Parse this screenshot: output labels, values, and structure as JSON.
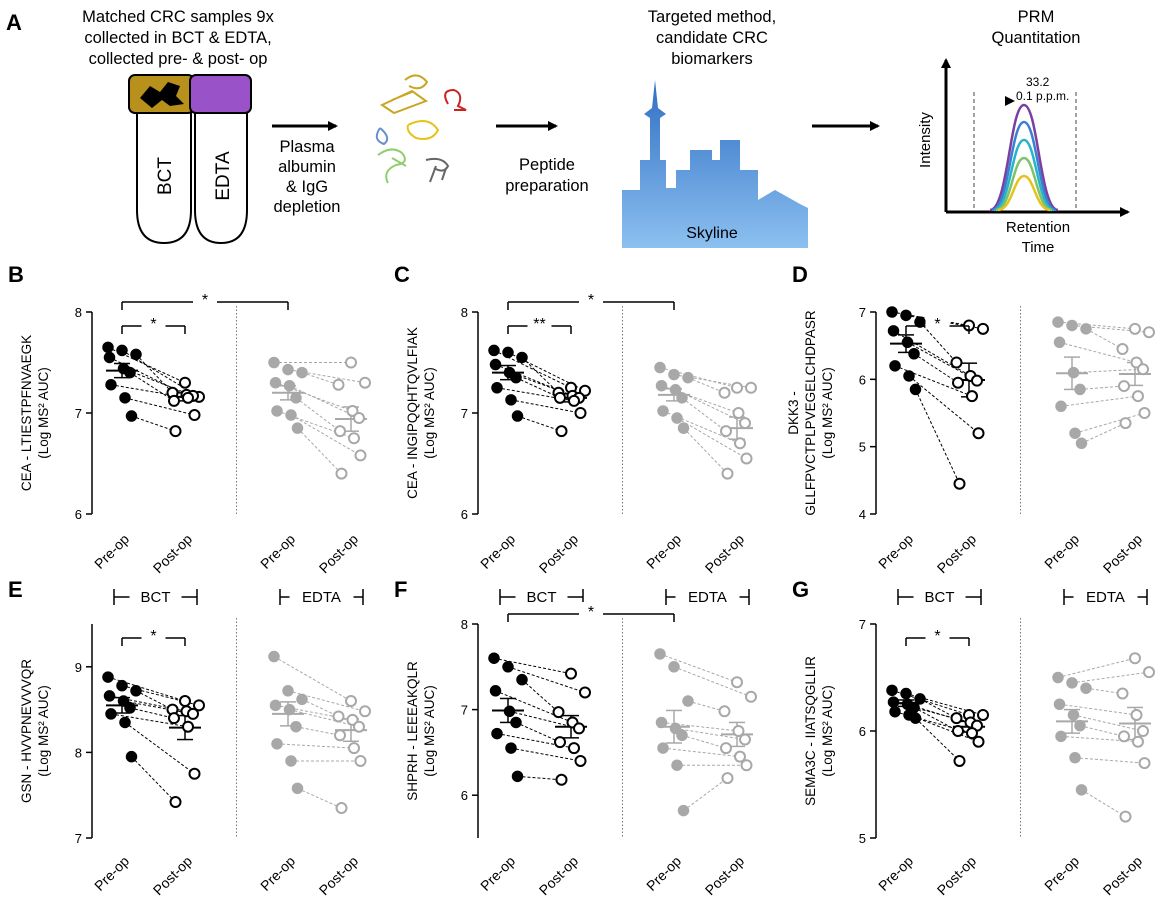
{
  "workflow": {
    "panel_label": "A",
    "step1_lines": [
      "Matched CRC samples 9x",
      "collected in BCT & EDTA,",
      "collected pre- & post- op"
    ],
    "tube_labels": [
      "BCT",
      "EDTA"
    ],
    "step2_lines": [
      "Plasma",
      "albumin",
      "& IgG",
      "depletion"
    ],
    "step3_lines": [
      "Peptide",
      "preparation"
    ],
    "step4_lines": [
      "Targeted method,",
      "candidate CRC",
      "biomarkers"
    ],
    "skyline_label": "Skyline",
    "step5_lines": [
      "PRM",
      "Quantitation"
    ],
    "prm_y_label": "Intensity",
    "prm_x_lines": [
      "Retention",
      "Time"
    ],
    "prm_annotation": [
      "33.2",
      "0.1 p.p.m."
    ],
    "colors": {
      "bct_cap": "#b8911c",
      "edta_cap": "#9a52c8",
      "skyline_blue": "#4d8fd6",
      "peak_purple": "#7b3fa0",
      "peak_blue": "#3a7fd0",
      "peak_teal": "#27b3c9",
      "peak_green": "#7cc46a",
      "peak_yellow": "#e7c21c"
    }
  },
  "chart_data": [
    {
      "panel": "B",
      "type": "scatter",
      "ylabel_lines": [
        "CEA - LTIESTPFNVAEGK",
        "(Log MS² AUC)"
      ],
      "ylim": [
        6,
        8
      ],
      "yticks": [
        "6",
        "7",
        "8"
      ],
      "categories": [
        "Pre-op",
        "Post-op",
        "Pre-op",
        "Post-op"
      ],
      "series": [
        {
          "group": "BCT",
          "pre": [
            7.65,
            7.62,
            7.58,
            7.55,
            7.44,
            7.4,
            7.28,
            7.15,
            6.97
          ],
          "post": [
            7.3,
            7.16,
            7.2,
            7.18,
            7.17,
            7.12,
            7.15,
            6.98,
            6.82
          ],
          "pre_mean": 7.42,
          "pre_sem": 0.07,
          "post_mean": 7.16,
          "post_sem": 0.04
        },
        {
          "group": "EDTA",
          "pre": [
            7.5,
            7.43,
            7.4,
            7.3,
            7.27,
            7.15,
            7.02,
            6.98,
            6.85
          ],
          "post": [
            7.5,
            7.3,
            7.28,
            7.02,
            6.95,
            6.82,
            6.75,
            6.58,
            6.4
          ],
          "pre_mean": 7.2,
          "pre_sem": 0.07,
          "post_mean": 6.94,
          "post_sem": 0.12
        }
      ],
      "significance": [
        {
          "from": "BCT Pre-op",
          "to": "BCT Post-op",
          "label": "*"
        },
        {
          "from": "BCT Pre-op",
          "to": "EDTA Pre-op",
          "label": "*"
        }
      ]
    },
    {
      "panel": "C",
      "type": "scatter",
      "ylabel_lines": [
        "CEA - INGIPQQHTQVLFIAK",
        "(Log MS² AUC)"
      ],
      "ylim": [
        6,
        8
      ],
      "yticks": [
        "6",
        "7",
        "8"
      ],
      "categories": [
        "Pre-op",
        "Post-op",
        "Pre-op",
        "Post-op"
      ],
      "series": [
        {
          "group": "BCT",
          "pre": [
            7.62,
            7.6,
            7.55,
            7.48,
            7.4,
            7.35,
            7.25,
            7.13,
            6.97
          ],
          "post": [
            7.25,
            7.22,
            7.2,
            7.17,
            7.15,
            7.15,
            7.12,
            7.0,
            6.82
          ],
          "pre_mean": 7.4,
          "pre_sem": 0.07,
          "post_mean": 7.15,
          "post_sem": 0.04
        },
        {
          "group": "EDTA",
          "pre": [
            7.45,
            7.38,
            7.35,
            7.27,
            7.23,
            7.15,
            7.02,
            6.95,
            6.85
          ],
          "post": [
            7.25,
            7.25,
            7.2,
            7.0,
            6.9,
            6.82,
            6.7,
            6.55,
            6.4
          ],
          "pre_mean": 7.18,
          "pre_sem": 0.06,
          "post_mean": 6.85,
          "post_sem": 0.11
        }
      ],
      "significance": [
        {
          "from": "BCT Pre-op",
          "to": "BCT Post-op",
          "label": "**"
        },
        {
          "from": "BCT Pre-op",
          "to": "EDTA Pre-op",
          "label": "*"
        }
      ]
    },
    {
      "panel": "D",
      "type": "scatter",
      "ylabel_lines": [
        "DKK3 -",
        "GLLFPVCTPLPVEGELCHDPASR",
        "(Log MS² AUC)"
      ],
      "ylim": [
        4,
        7
      ],
      "yticks": [
        "4",
        "5",
        "6",
        "7"
      ],
      "categories": [
        "Pre-op",
        "Post-op",
        "Pre-op",
        "Post-op"
      ],
      "series": [
        {
          "group": "BCT",
          "pre": [
            7.0,
            6.95,
            6.85,
            6.72,
            6.55,
            6.38,
            6.2,
            6.05,
            5.85
          ],
          "post": [
            6.8,
            6.75,
            6.25,
            6.05,
            5.98,
            5.95,
            5.75,
            5.2,
            4.45
          ],
          "pre_mean": 6.53,
          "pre_sem": 0.13,
          "post_mean": 5.99,
          "post_sem": 0.25
        },
        {
          "group": "EDTA",
          "pre": [
            6.85,
            6.8,
            6.75,
            6.55,
            6.1,
            5.85,
            5.6,
            5.2,
            5.05
          ],
          "post": [
            6.75,
            6.7,
            6.45,
            6.25,
            6.15,
            5.9,
            5.75,
            5.5,
            5.35
          ],
          "pre_mean": 6.09,
          "pre_sem": 0.24,
          "post_mean": 6.08,
          "post_sem": 0.17
        }
      ],
      "significance": [
        {
          "from": "BCT Pre-op",
          "to": "BCT Post-op",
          "label": "*"
        }
      ]
    },
    {
      "panel": "E",
      "type": "scatter",
      "ylabel_lines": [
        "GSN - HVVPNEVVVQR",
        "(Log MS² AUC)"
      ],
      "ylim": [
        7,
        9.5
      ],
      "yticks": [
        "7",
        "8",
        "9"
      ],
      "categories": [
        "Pre-op",
        "Post-op",
        "Pre-op",
        "Post-op"
      ],
      "series": [
        {
          "group": "BCT",
          "pre": [
            8.88,
            8.78,
            8.72,
            8.66,
            8.6,
            8.52,
            8.45,
            8.35,
            7.95
          ],
          "post": [
            8.6,
            8.55,
            8.5,
            8.48,
            8.45,
            8.4,
            8.3,
            7.75,
            7.42
          ],
          "pre_mean": 8.55,
          "pre_sem": 0.09,
          "post_mean": 8.29,
          "post_sem": 0.14
        },
        {
          "group": "EDTA",
          "pre": [
            9.12,
            8.72,
            8.62,
            8.55,
            8.5,
            8.3,
            8.1,
            7.9,
            7.58
          ],
          "post": [
            8.6,
            8.48,
            8.42,
            8.38,
            8.3,
            8.2,
            8.05,
            7.9,
            7.35
          ],
          "pre_mean": 8.45,
          "pre_sem": 0.14,
          "post_mean": 8.26,
          "post_sem": 0.13
        }
      ],
      "significance": [
        {
          "from": "BCT Pre-op",
          "to": "BCT Post-op",
          "label": "*"
        }
      ]
    },
    {
      "panel": "F",
      "type": "scatter",
      "ylabel_lines": [
        "SHPRH - LEEEAKQLR",
        "(Log MS² AUC)"
      ],
      "ylim": [
        5.5,
        8
      ],
      "yticks": [
        "6",
        "7",
        "8"
      ],
      "categories": [
        "Pre-op",
        "Post-op",
        "Pre-op",
        "Post-op"
      ],
      "series": [
        {
          "group": "BCT",
          "pre": [
            7.6,
            7.5,
            7.35,
            7.22,
            6.98,
            6.85,
            6.72,
            6.55,
            6.22
          ],
          "post": [
            7.42,
            7.2,
            6.97,
            6.85,
            6.78,
            6.62,
            6.55,
            6.4,
            6.18
          ],
          "pre_mean": 6.99,
          "pre_sem": 0.14,
          "post_mean": 6.8,
          "post_sem": 0.13
        },
        {
          "group": "EDTA",
          "pre": [
            7.65,
            7.5,
            7.1,
            6.85,
            6.78,
            6.7,
            6.55,
            6.35,
            5.82
          ],
          "post": [
            7.32,
            7.15,
            6.98,
            6.75,
            6.65,
            6.55,
            6.45,
            6.35,
            6.2
          ],
          "pre_mean": 6.8,
          "pre_sem": 0.19,
          "post_mean": 6.71,
          "post_sem": 0.14
        }
      ],
      "significance": [
        {
          "from": "BCT Pre-op",
          "to": "EDTA Pre-op",
          "label": "*"
        }
      ]
    },
    {
      "panel": "G",
      "type": "scatter",
      "ylabel_lines": [
        "SEMA3C - IIATSQGLLIR",
        "(Log MS² AUC)"
      ],
      "ylim": [
        5,
        7
      ],
      "yticks": [
        "5",
        "6",
        "7"
      ],
      "categories": [
        "Pre-op",
        "Post-op",
        "Pre-op",
        "Post-op"
      ],
      "series": [
        {
          "group": "BCT",
          "pre": [
            6.38,
            6.35,
            6.3,
            6.27,
            6.25,
            6.22,
            6.18,
            6.15,
            6.12
          ],
          "post": [
            6.15,
            6.15,
            6.12,
            6.08,
            6.05,
            6.0,
            5.98,
            5.9,
            5.72
          ],
          "pre_mean": 6.26,
          "pre_sem": 0.03,
          "post_mean": 6.04,
          "post_sem": 0.05
        },
        {
          "group": "EDTA",
          "pre": [
            6.5,
            6.45,
            6.4,
            6.25,
            6.15,
            6.05,
            5.95,
            5.75,
            5.45
          ],
          "post": [
            6.68,
            6.55,
            6.35,
            6.15,
            6.0,
            5.95,
            5.9,
            5.7,
            5.2
          ],
          "pre_mean": 6.09,
          "pre_sem": 0.11,
          "post_mean": 6.07,
          "post_sem": 0.15
        }
      ],
      "significance": [
        {
          "from": "BCT Pre-op",
          "to": "BCT Post-op",
          "label": "*"
        }
      ]
    }
  ],
  "group_labels": [
    "BCT",
    "EDTA"
  ],
  "style": {
    "bct_color": "#000000",
    "edta_color": "#a8a8a8"
  }
}
